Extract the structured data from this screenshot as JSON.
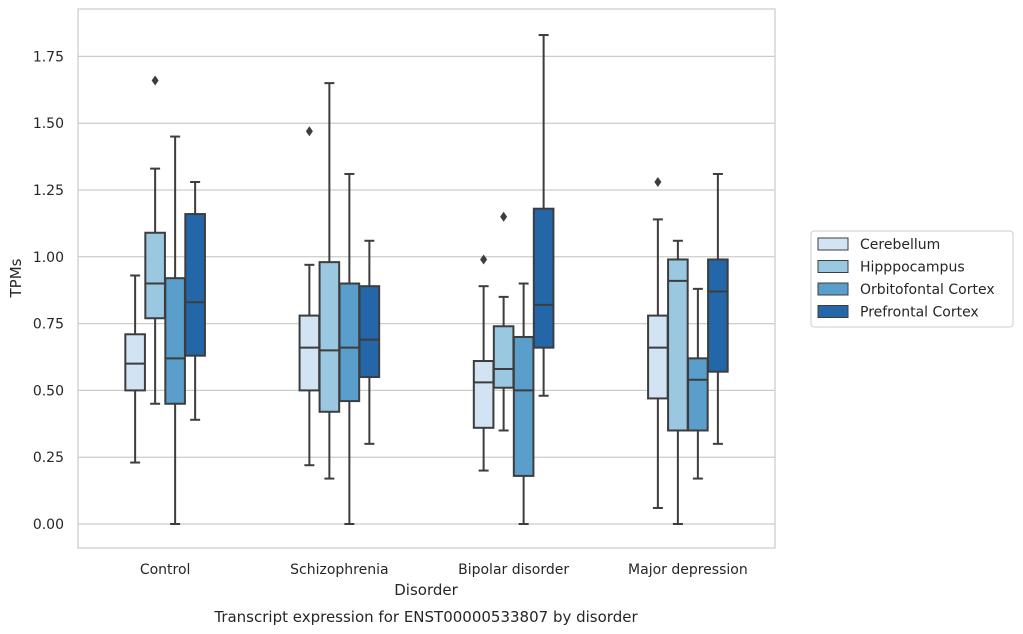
{
  "chart_data": {
    "type": "box",
    "xlabel": "Disorder",
    "ylabel": "TPMs",
    "caption": "Transcript expression for ENST00000533807 by disorder",
    "ylim": [
      -0.09,
      1.92
    ],
    "yticks": [
      0.0,
      0.25,
      0.5,
      0.75,
      1.0,
      1.25,
      1.5,
      1.75
    ],
    "ytick_labels": [
      "0.00",
      "0.25",
      "0.50",
      "0.75",
      "1.00",
      "1.25",
      "1.50",
      "1.75"
    ],
    "grid": "horizontal",
    "legend_position": "right",
    "categories": [
      "Control",
      "Schizophrenia",
      "Bipolar disorder",
      "Major depression"
    ],
    "series": [
      {
        "name": "Cerebellum",
        "color": "#d2e3f3",
        "boxes": [
          {
            "whislo": 0.23,
            "q1": 0.5,
            "med": 0.6,
            "q3": 0.71,
            "whishi": 0.93,
            "fliers": []
          },
          {
            "whislo": 0.22,
            "q1": 0.5,
            "med": 0.66,
            "q3": 0.78,
            "whishi": 0.97,
            "fliers": [
              1.47
            ]
          },
          {
            "whislo": 0.2,
            "q1": 0.36,
            "med": 0.53,
            "q3": 0.61,
            "whishi": 0.89,
            "fliers": [
              0.99
            ]
          },
          {
            "whislo": 0.06,
            "q1": 0.47,
            "med": 0.66,
            "q3": 0.78,
            "whishi": 1.14,
            "fliers": [
              1.28
            ]
          }
        ]
      },
      {
        "name": "Hipppocampus",
        "color": "#9ac8e0",
        "boxes": [
          {
            "whislo": 0.45,
            "q1": 0.77,
            "med": 0.9,
            "q3": 1.09,
            "whishi": 1.33,
            "fliers": [
              1.66
            ]
          },
          {
            "whislo": 0.17,
            "q1": 0.42,
            "med": 0.65,
            "q3": 0.98,
            "whishi": 1.65,
            "fliers": []
          },
          {
            "whislo": 0.35,
            "q1": 0.51,
            "med": 0.58,
            "q3": 0.74,
            "whishi": 0.85,
            "fliers": [
              1.15
            ]
          },
          {
            "whislo": 0.0,
            "q1": 0.35,
            "med": 0.91,
            "q3": 0.99,
            "whishi": 1.06,
            "fliers": []
          }
        ]
      },
      {
        "name": "Orbitofontal Cortex",
        "color": "#5a9ecc",
        "boxes": [
          {
            "whislo": 0.0,
            "q1": 0.45,
            "med": 0.62,
            "q3": 0.92,
            "whishi": 1.45,
            "fliers": []
          },
          {
            "whislo": 0.0,
            "q1": 0.46,
            "med": 0.66,
            "q3": 0.9,
            "whishi": 1.31,
            "fliers": []
          },
          {
            "whislo": 0.0,
            "q1": 0.18,
            "med": 0.5,
            "q3": 0.7,
            "whishi": 0.9,
            "fliers": []
          },
          {
            "whislo": 0.17,
            "q1": 0.35,
            "med": 0.54,
            "q3": 0.62,
            "whishi": 0.88,
            "fliers": []
          }
        ]
      },
      {
        "name": "Prefrontal Cortex",
        "color": "#2367a9",
        "boxes": [
          {
            "whislo": 0.39,
            "q1": 0.63,
            "med": 0.83,
            "q3": 1.16,
            "whishi": 1.28,
            "fliers": []
          },
          {
            "whislo": 0.3,
            "q1": 0.55,
            "med": 0.69,
            "q3": 0.89,
            "whishi": 1.06,
            "fliers": []
          },
          {
            "whislo": 0.48,
            "q1": 0.66,
            "med": 0.82,
            "q3": 1.18,
            "whishi": 1.83,
            "fliers": []
          },
          {
            "whislo": 0.3,
            "q1": 0.57,
            "med": 0.87,
            "q3": 0.99,
            "whishi": 1.31,
            "fliers": []
          }
        ]
      }
    ]
  }
}
